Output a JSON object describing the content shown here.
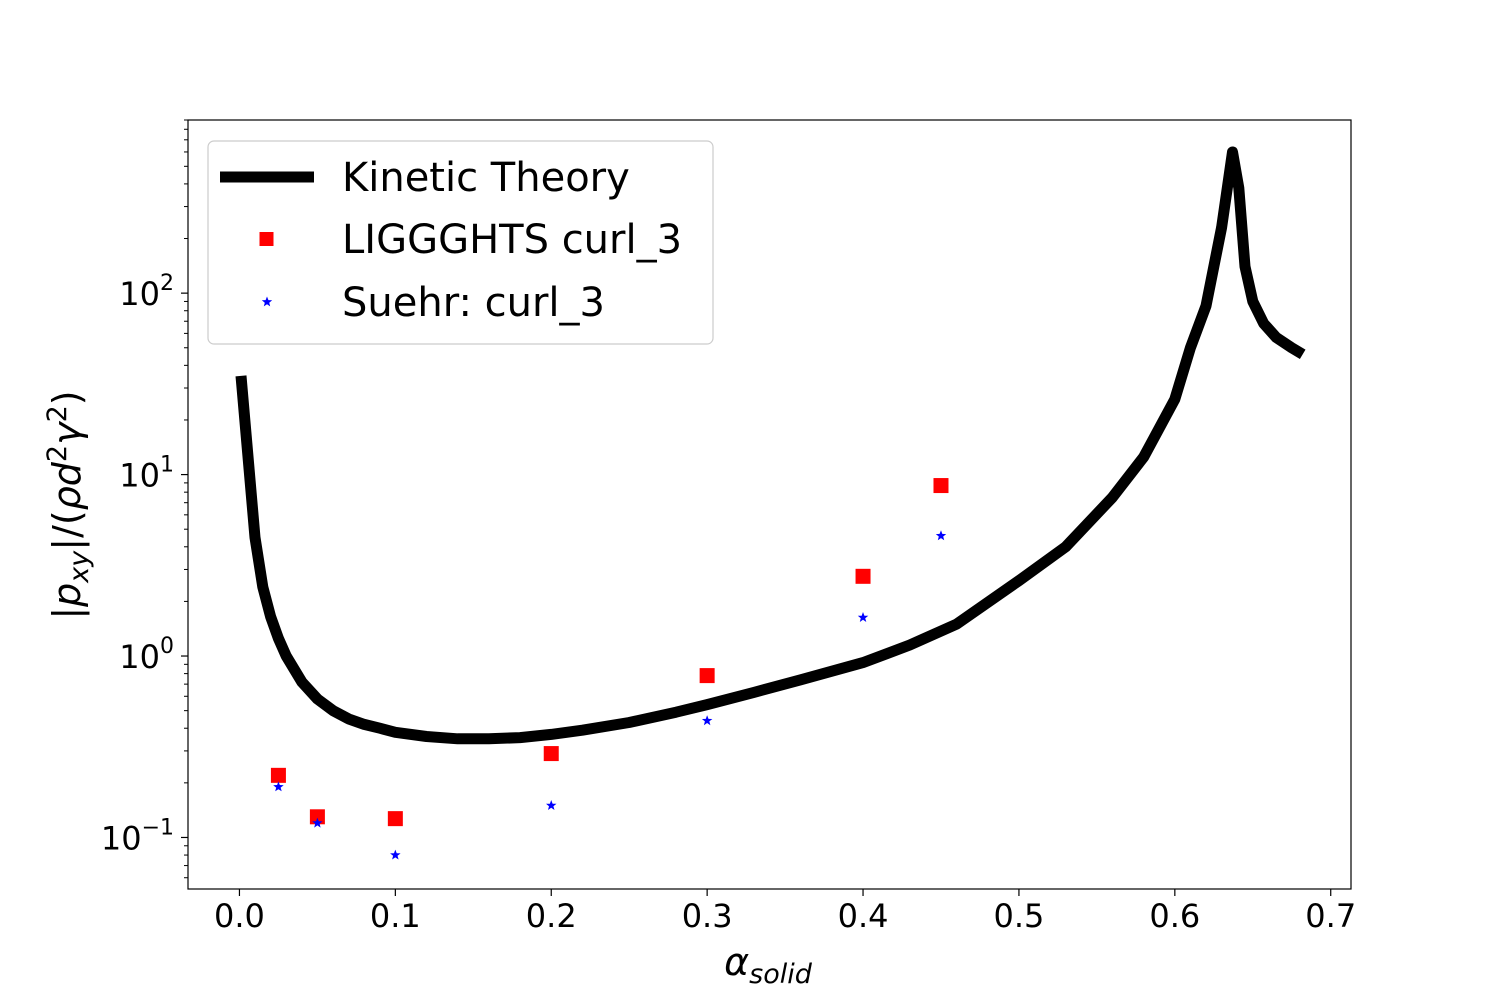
{
  "chart_data": {
    "type": "line",
    "xlabel": "α",
    "xlabel_sub": "solid",
    "ylabel_parts": {
      "bar_open": "|",
      "p": "p",
      "p_sub": "xy",
      "mid": "|/(",
      "rho": "ρ",
      "d": "d",
      "sq1": "2",
      "gamma": "γ",
      "sq2": "2",
      "close": ")"
    },
    "xlim": [
      -0.033,
      0.713
    ],
    "ylim": [
      0.052,
      900
    ],
    "yscale": "log",
    "grid": false,
    "legend_position": "top-left",
    "x_ticks": [
      {
        "value": 0.0,
        "label": "0.0"
      },
      {
        "value": 0.1,
        "label": "0.1"
      },
      {
        "value": 0.2,
        "label": "0.2"
      },
      {
        "value": 0.3,
        "label": "0.3"
      },
      {
        "value": 0.4,
        "label": "0.4"
      },
      {
        "value": 0.5,
        "label": "0.5"
      },
      {
        "value": 0.6,
        "label": "0.6"
      },
      {
        "value": 0.7,
        "label": "0.7"
      }
    ],
    "y_ticks": [
      {
        "value": 0.1,
        "base": "10",
        "exp": "−1"
      },
      {
        "value": 1,
        "base": "10",
        "exp": "0"
      },
      {
        "value": 10,
        "base": "10",
        "exp": "1"
      },
      {
        "value": 100,
        "base": "10",
        "exp": "2"
      }
    ],
    "series": [
      {
        "name": "Kinetic Theory",
        "kind": "line",
        "color": "#000000",
        "x": [
          0.001,
          0.01,
          0.015,
          0.02,
          0.025,
          0.03,
          0.04,
          0.05,
          0.06,
          0.07,
          0.08,
          0.09,
          0.1,
          0.12,
          0.14,
          0.16,
          0.18,
          0.2,
          0.22,
          0.25,
          0.28,
          0.3,
          0.33,
          0.36,
          0.4,
          0.43,
          0.46,
          0.5,
          0.53,
          0.56,
          0.58,
          0.6,
          0.61,
          0.62,
          0.63,
          0.637,
          0.641,
          0.645,
          0.65,
          0.657,
          0.665,
          0.675,
          0.682
        ],
        "y": [
          35,
          4.5,
          2.4,
          1.65,
          1.25,
          1.0,
          0.72,
          0.58,
          0.5,
          0.45,
          0.42,
          0.4,
          0.38,
          0.36,
          0.35,
          0.35,
          0.355,
          0.37,
          0.39,
          0.43,
          0.49,
          0.54,
          0.63,
          0.74,
          0.92,
          1.15,
          1.5,
          2.6,
          4.0,
          7.5,
          12.5,
          26,
          50,
          85,
          230,
          600,
          380,
          140,
          90,
          68,
          57,
          50,
          46
        ]
      },
      {
        "name": "LIGGGHTS curl_3",
        "kind": "scatter",
        "marker": "square",
        "color": "#ff0000",
        "x": [
          0.025,
          0.05,
          0.1,
          0.2,
          0.3,
          0.4,
          0.45
        ],
        "y": [
          0.22,
          0.13,
          0.127,
          0.29,
          0.78,
          2.75,
          8.7
        ]
      },
      {
        "name": "Suehr: curl_3",
        "kind": "scatter",
        "marker": "star",
        "color": "#0000ff",
        "x": [
          0.025,
          0.05,
          0.1,
          0.2,
          0.3,
          0.4,
          0.45
        ],
        "y": [
          0.19,
          0.12,
          0.08,
          0.15,
          0.44,
          1.63,
          4.6
        ]
      }
    ]
  }
}
